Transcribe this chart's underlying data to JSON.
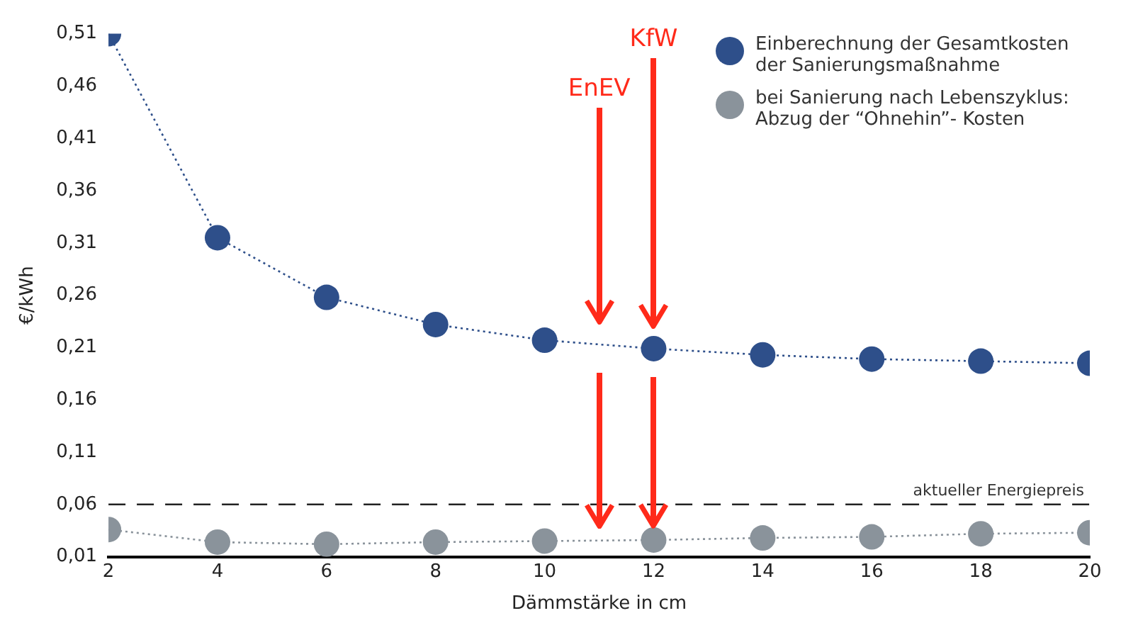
{
  "chart_data": {
    "type": "line",
    "xlabel": "Dämmstärke in cm",
    "ylabel": "€/kWh",
    "x": [
      2,
      4,
      6,
      8,
      10,
      12,
      14,
      16,
      18,
      20
    ],
    "series": [
      {
        "name": "Einberechnung der Gesamtkosten der Sanierungsmaßnahme",
        "color": "#2e4f8a",
        "values": [
          0.51,
          0.315,
          0.258,
          0.232,
          0.217,
          0.209,
          0.203,
          0.199,
          0.197,
          0.195
        ]
      },
      {
        "name": "bei Sanierung nach Lebenszyklus: Abzug der “Ohnehin”- Kosten",
        "color": "#8a939b",
        "values": [
          0.036,
          0.024,
          0.022,
          0.024,
          0.025,
          0.026,
          0.028,
          0.029,
          0.032,
          0.033
        ]
      }
    ],
    "xlim": [
      2,
      20
    ],
    "xticks": [
      2,
      4,
      6,
      8,
      10,
      12,
      14,
      16,
      18,
      20
    ],
    "ylim": [
      0.01,
      0.51
    ],
    "yticks": [
      {
        "value": 0.01,
        "label": "0,01"
      },
      {
        "value": 0.06,
        "label": "0,06"
      },
      {
        "value": 0.11,
        "label": "0,11"
      },
      {
        "value": 0.16,
        "label": "0,16"
      },
      {
        "value": 0.21,
        "label": "0,21"
      },
      {
        "value": 0.26,
        "label": "0,26"
      },
      {
        "value": 0.31,
        "label": "0,31"
      },
      {
        "value": 0.36,
        "label": "0,36"
      },
      {
        "value": 0.41,
        "label": "0,41"
      },
      {
        "value": 0.46,
        "label": "0,46"
      },
      {
        "value": 0.51,
        "label": "0,51"
      }
    ],
    "ref_lines": [
      {
        "axis": "y",
        "value": 0.06,
        "label": "aktueller Energiepreis",
        "color": "#222222",
        "line_style": "dashed"
      }
    ],
    "annotations": [
      "EnEV",
      "KfW"
    ],
    "legend": "top right",
    "marker": "circle",
    "line_style": "dotted"
  }
}
